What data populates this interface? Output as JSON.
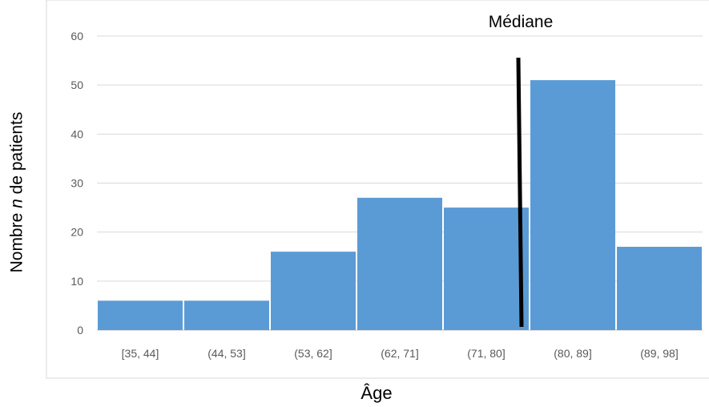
{
  "chart_data": {
    "type": "bar",
    "categories": [
      "[35, 44]",
      "(44, 53]",
      "(53, 62]",
      "(62, 71]",
      "(71, 80]",
      "(80, 89]",
      "(89, 98]"
    ],
    "values": [
      6,
      6,
      16,
      27,
      25,
      51,
      17
    ],
    "xlabel": "Âge",
    "ylabel": {
      "prefix": "Nombre ",
      "italic": "n",
      "suffix": " de patients"
    },
    "ylim": [
      0,
      60
    ],
    "yticks": [
      0,
      10,
      20,
      30,
      40,
      50,
      60
    ],
    "grid": true,
    "bar_color": "#5b9bd5",
    "median": {
      "label": "Médiane",
      "position_category_index": 5,
      "position_fraction": 0.0
    }
  }
}
